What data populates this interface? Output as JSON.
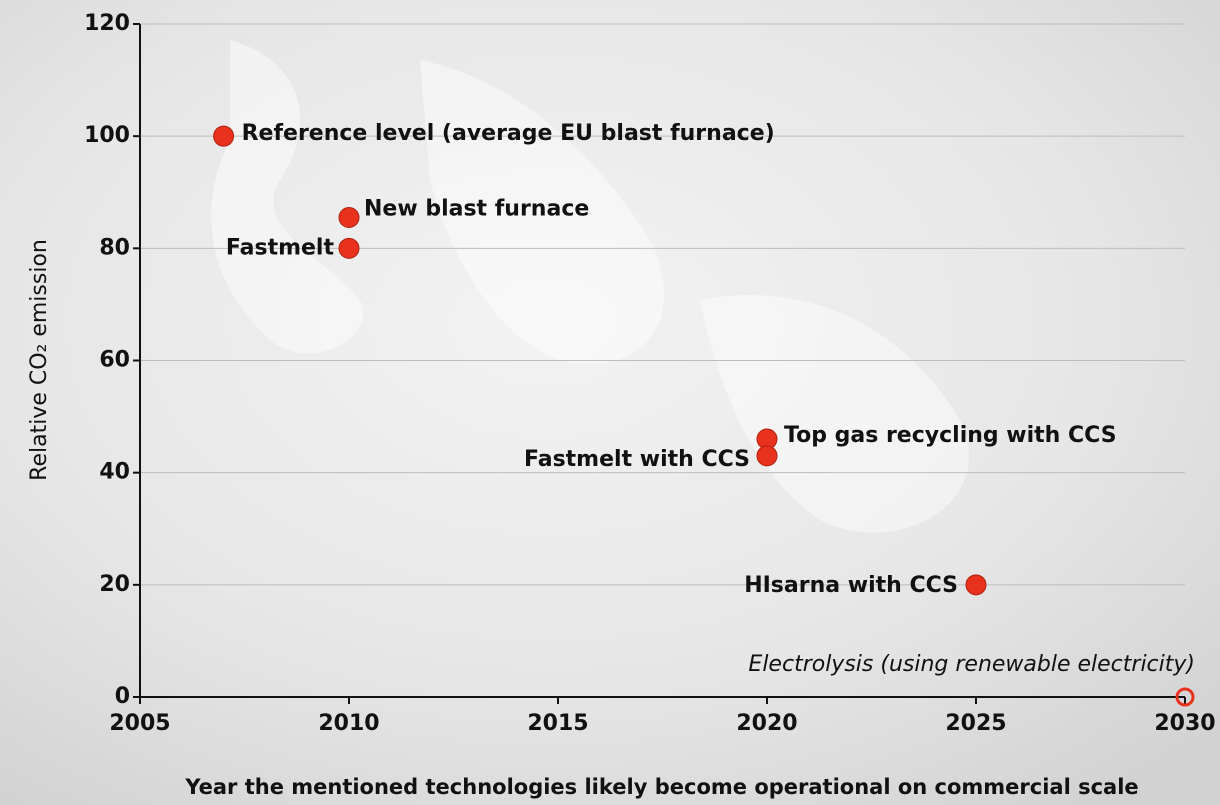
{
  "chart_data": {
    "type": "scatter",
    "ylabel": "Relative CO₂ emission",
    "xlabel": "Year the mentioned technologies likely become operational on commercial scale",
    "labels": [
      "Reference level (average EU blast furnace)",
      "New blast furnace",
      "Fastmelt",
      "Top gas recycling with CCS",
      "Fastmelt with CCS",
      "HIsarna with  CCS",
      "Electrolysis (using renewable electricity)"
    ],
    "x": [
      2007,
      2010,
      2010,
      2020,
      2020,
      2025,
      2030
    ],
    "values": [
      100,
      85.5,
      80,
      46,
      43,
      20,
      0
    ],
    "hollow": [
      false,
      false,
      false,
      false,
      false,
      false,
      true
    ],
    "color": "#e8321e",
    "xlim": [
      2005,
      2030
    ],
    "xticks": [
      2005,
      2010,
      2015,
      2020,
      2025,
      2030
    ],
    "ylim": [
      0,
      120
    ],
    "yticks": [
      0,
      20,
      40,
      60,
      80,
      100,
      120
    ],
    "grid": true
  }
}
